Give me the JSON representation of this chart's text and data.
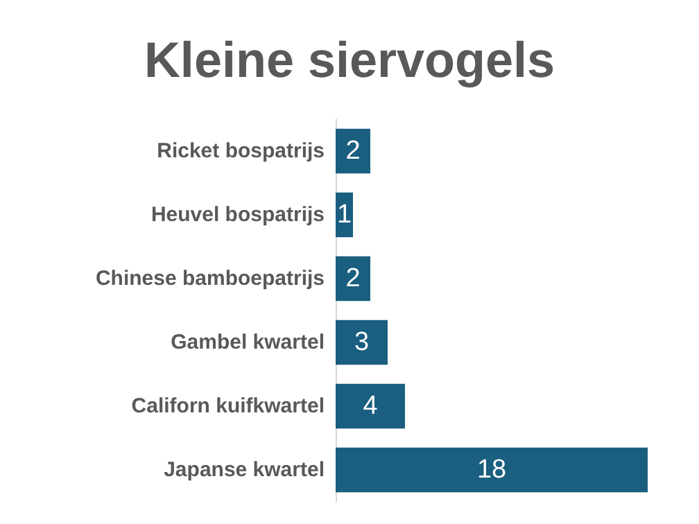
{
  "chart_data": {
    "type": "bar",
    "orientation": "horizontal",
    "title": "Kleine siervogels",
    "categories": [
      "Ricket bospatrijs",
      "Heuvel bospatrijs",
      "Chinese bamboepatrijs",
      "Gambel kwartel",
      "Californ kuifkwartel",
      "Japanse kwartel"
    ],
    "values": [
      2,
      1,
      2,
      3,
      4,
      18
    ],
    "color": "#1a5e80",
    "data_labels": true
  }
}
